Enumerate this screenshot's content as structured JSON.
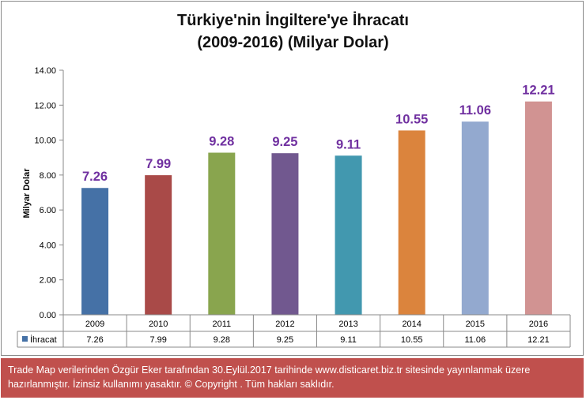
{
  "chart_data": {
    "type": "bar",
    "title": "Türkiye'nin İngiltere'ye İhracatı\n(2009-2016) (Milyar Dolar)",
    "xlabel": "",
    "ylabel": "Milyar Dolar",
    "categories": [
      "2009",
      "2010",
      "2011",
      "2012",
      "2013",
      "2014",
      "2015",
      "2016"
    ],
    "series": [
      {
        "name": "İhracat",
        "values": [
          7.26,
          7.99,
          9.28,
          9.25,
          9.11,
          10.55,
          11.06,
          12.21
        ],
        "display_values": [
          "7.26",
          "7.99",
          "9.28",
          "9.25",
          "9.11",
          "10.55",
          "11.06",
          "12.21"
        ]
      }
    ],
    "bar_colors": [
      "#4571a6",
      "#a94a48",
      "#89a54e",
      "#71588f",
      "#4298af",
      "#db843d",
      "#93a9cf",
      "#d19392"
    ],
    "legend_color": "#4571a6",
    "data_label_color": "#7030a0",
    "ylim": [
      0,
      14
    ],
    "yticks": [
      "0.00",
      "2.00",
      "4.00",
      "6.00",
      "8.00",
      "10.00",
      "12.00",
      "14.00"
    ],
    "grid": false,
    "data_table": true
  },
  "footer": {
    "text": "Trade Map verilerinden Özgür Eker tarafından 30.Eylül.2017  tarihinde www.disticaret.biz.tr  sitesinde yayınlanmak üzere hazırlanmıştır. İzinsiz kullanımı yasaktır. © Copyright . Tüm hakları saklıdır."
  }
}
